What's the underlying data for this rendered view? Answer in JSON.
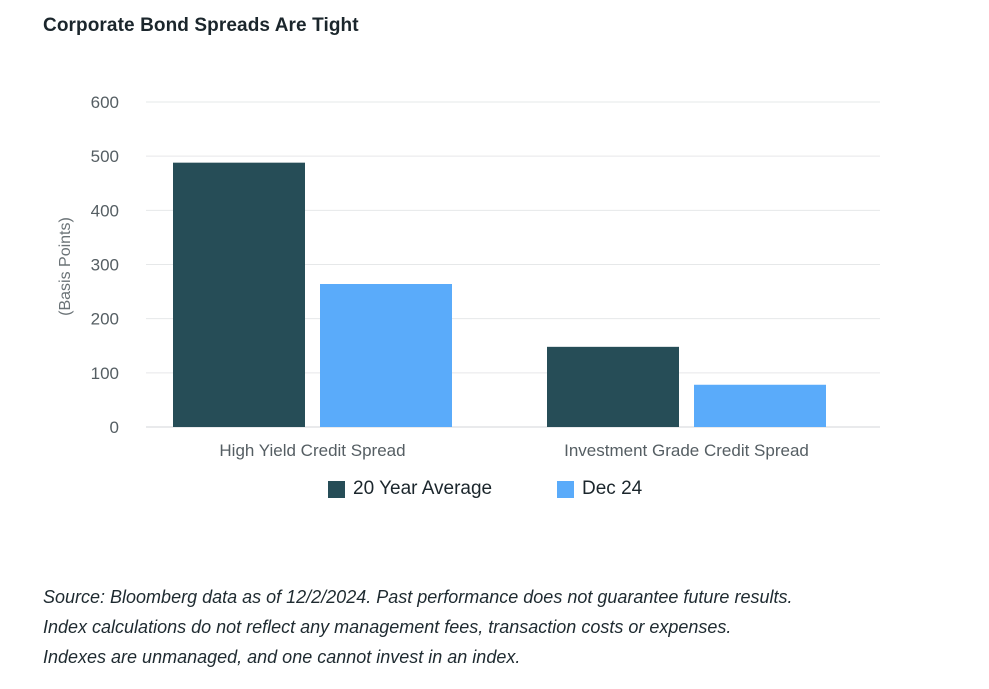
{
  "title": "Corporate Bond Spreads Are Tight",
  "colors": {
    "series_1": "#264d57",
    "series_2": "#5aabfa",
    "grid": "#e6e8e9",
    "axis": "#d3d6d8"
  },
  "chart_data": {
    "type": "bar",
    "title": "Corporate Bond Spreads Are Tight",
    "categories": [
      "High Yield Credit Spread",
      "Investment Grade Credit Spread"
    ],
    "series": [
      {
        "name": "20 Year Average",
        "values": [
          488,
          148
        ]
      },
      {
        "name": "Dec 24",
        "values": [
          264,
          78
        ]
      }
    ],
    "xlabel": "",
    "ylabel": "(Basis Points)",
    "ylim": [
      0,
      600
    ],
    "yticks": [
      0,
      100,
      200,
      300,
      400,
      500,
      600
    ],
    "grid": true,
    "legend_position": "bottom"
  },
  "legend": {
    "items": [
      "20 Year Average",
      "Dec 24"
    ]
  },
  "source": {
    "lines": [
      "Source: Bloomberg data as of 12/2/2024. Past performance does not guarantee future results.",
      "Index calculations do not reflect any management fees, transaction costs or expenses.",
      "Indexes are unmanaged, and one cannot invest in an index."
    ]
  }
}
